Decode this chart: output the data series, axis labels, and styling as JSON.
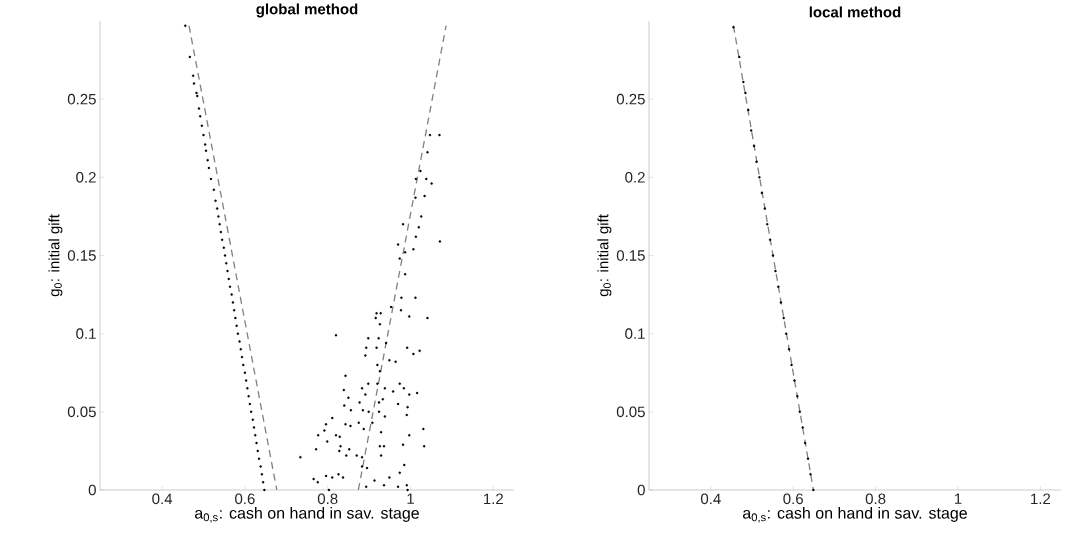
{
  "chart_data": [
    {
      "type": "scatter",
      "title": "global method",
      "xlabel": "a$_{0,s}$: cash on hand in sav. stage",
      "ylabel": "g$_{0}$: initial gift",
      "xlim": [
        0.25,
        1.25
      ],
      "ylim": [
        0,
        0.3
      ],
      "xticks": [
        0.4,
        0.6,
        0.8,
        1,
        1.2
      ],
      "yticks": [
        0,
        0.05,
        0.1,
        0.15,
        0.2,
        0.25
      ],
      "grid": false,
      "series": [
        {
          "color": "#000000",
          "marker": "circle",
          "x": [
            0.456,
            0.467,
            0.475,
            0.477,
            0.483,
            0.485,
            0.489,
            0.492,
            0.496,
            0.5,
            0.504,
            0.506,
            0.51,
            0.513,
            0.518,
            0.525,
            0.529,
            0.533,
            0.536,
            0.539,
            0.542,
            0.545,
            0.549,
            0.552,
            0.555,
            0.558,
            0.561,
            0.564,
            0.568,
            0.571,
            0.574,
            0.577,
            0.58,
            0.583,
            0.587,
            0.59,
            0.593,
            0.596,
            0.6,
            0.603,
            0.606,
            0.609,
            0.612,
            0.615,
            0.619,
            0.622,
            0.625,
            0.628,
            0.631,
            0.634,
            0.638,
            0.641,
            0.644,
            0.647
          ],
          "values": [
            0.297,
            0.277,
            0.265,
            0.26,
            0.254,
            0.252,
            0.244,
            0.239,
            0.233,
            0.227,
            0.221,
            0.217,
            0.211,
            0.206,
            0.199,
            0.192,
            0.185,
            0.18,
            0.175,
            0.17,
            0.165,
            0.16,
            0.155,
            0.15,
            0.145,
            0.14,
            0.135,
            0.13,
            0.125,
            0.12,
            0.115,
            0.11,
            0.105,
            0.1,
            0.095,
            0.09,
            0.085,
            0.08,
            0.075,
            0.07,
            0.065,
            0.06,
            0.055,
            0.05,
            0.045,
            0.04,
            0.035,
            0.03,
            0.025,
            0.02,
            0.015,
            0.01,
            0.005,
            0
          ]
        },
        {
          "color": "#000000",
          "marker": "circle",
          "x": [
            1.07,
            1.047,
            1.041,
            1.024,
            1.013,
            1.038,
            1.051,
            1.012,
            1.034,
            1.026,
            1.02,
            1.013,
            0.982,
            1.007,
            0.97,
            0.974,
            0.987,
            1.071,
            0.987,
            0.978,
            1.012,
            1.041,
            0.997,
            0.953,
            0.928,
            0.977,
            0.918,
            0.916,
            0.926,
            0.82,
            0.898,
            0.923,
            0.941,
            0.893,
            0.918,
            0.992,
            1.022,
            1.007,
            0.891,
            0.949,
            0.964,
            0.92,
            0.926,
            0.843,
            0.898,
            0.92,
            0.974,
            0.883,
            0.938,
            0.984,
            0.839,
            0.891,
            0.958,
            0.997,
            1.016,
            0.85,
            0.933,
            0.877,
            0.924,
            0.84,
            0.97,
            0.856,
            0.885,
            0.993,
            0.899,
            0.924,
            0.991,
            0.938,
            0.811,
            0.875,
            0.908,
            0.843,
            0.855,
            0.796,
            0.792,
            0.887,
            0.929,
            0.82,
            0.829,
            0.997,
            1.031,
            0.777,
            0.799,
            0.831,
            0.926,
            0.936,
            0.982,
            1.033,
            0.828,
            0.852,
            0.772,
            0.845,
            0.87,
            0.883,
            0.929,
            0.734,
            0.883,
            0.895,
            0.985,
            0.974,
            0.766,
            0.796,
            0.811,
            0.826,
            0.837,
            0.776,
            0.913,
            0.949,
            0.936,
            0.893,
            0.97,
            0.991,
            0.803,
            0.993
          ],
          "values": [
            0.227,
            0.227,
            0.216,
            0.204,
            0.199,
            0.199,
            0.196,
            0.187,
            0.188,
            0.175,
            0.168,
            0.162,
            0.17,
            0.154,
            0.157,
            0.148,
            0.152,
            0.159,
            0.138,
            0.123,
            0.123,
            0.11,
            0.111,
            0.117,
            0.113,
            0.115,
            0.113,
            0.11,
            0.106,
            0.099,
            0.097,
            0.097,
            0.094,
            0.091,
            0.091,
            0.091,
            0.089,
            0.087,
            0.086,
            0.083,
            0.082,
            0.08,
            0.076,
            0.073,
            0.068,
            0.068,
            0.068,
            0.065,
            0.065,
            0.065,
            0.064,
            0.061,
            0.063,
            0.061,
            0.062,
            0.059,
            0.058,
            0.056,
            0.056,
            0.054,
            0.055,
            0.051,
            0.051,
            0.053,
            0.05,
            0.05,
            0.048,
            0.047,
            0.046,
            0.043,
            0.043,
            0.042,
            0.041,
            0.042,
            0.038,
            0.039,
            0.037,
            0.035,
            0.034,
            0.035,
            0.039,
            0.035,
            0.031,
            0.028,
            0.028,
            0.028,
            0.029,
            0.028,
            0.025,
            0.026,
            0.026,
            0.022,
            0.022,
            0.021,
            0.022,
            0.021,
            0.015,
            0.014,
            0.016,
            0.011,
            0.007,
            0.009,
            0.008,
            0.01,
            0.008,
            0.005,
            0.006,
            0.008,
            0.003,
            0.002,
            0.002,
            0.003,
            0,
            0
          ]
        },
        {
          "type": "line",
          "color": "#808080",
          "marker": "none",
          "line_style": "dashed",
          "x": [
            0.465,
            0.677
          ],
          "values": [
            0.297,
            0
          ]
        },
        {
          "type": "line",
          "color": "#808080",
          "marker": "none",
          "line_style": "dashed",
          "x": [
            0.874,
            1.086
          ],
          "values": [
            0,
            0.297
          ]
        }
      ]
    },
    {
      "type": "scatter",
      "title": "local method",
      "xlabel": "a$_{0,s}$: cash on hand in sav. stage",
      "ylabel": "g$_{0}$: initial gift",
      "xlim": [
        0.25,
        1.25
      ],
      "ylim": [
        0,
        0.3
      ],
      "xticks": [
        0.4,
        0.6,
        0.8,
        1,
        1.2
      ],
      "yticks": [
        0,
        0.05,
        0.1,
        0.15,
        0.2,
        0.25
      ],
      "grid": false,
      "series": [
        {
          "color": "#000000",
          "marker": "circle",
          "x": [
            0.455,
            0.469,
            0.479,
            0.484,
            0.491,
            0.498,
            0.505,
            0.511,
            0.518,
            0.524,
            0.531,
            0.537,
            0.544,
            0.551,
            0.557,
            0.564,
            0.57,
            0.577,
            0.583,
            0.59,
            0.596,
            0.603,
            0.61,
            0.616,
            0.623,
            0.629,
            0.636,
            0.642,
            0.649
          ],
          "values": [
            0.296,
            0.277,
            0.261,
            0.254,
            0.243,
            0.23,
            0.22,
            0.21,
            0.2,
            0.19,
            0.18,
            0.17,
            0.16,
            0.15,
            0.14,
            0.13,
            0.12,
            0.11,
            0.1,
            0.09,
            0.08,
            0.07,
            0.06,
            0.05,
            0.04,
            0.03,
            0.02,
            0.01,
            0
          ]
        },
        {
          "type": "line",
          "color": "#808080",
          "marker": "none",
          "line_style": "dashed",
          "x": [
            0.455,
            0.649
          ],
          "values": [
            0.297,
            0
          ]
        }
      ]
    }
  ]
}
